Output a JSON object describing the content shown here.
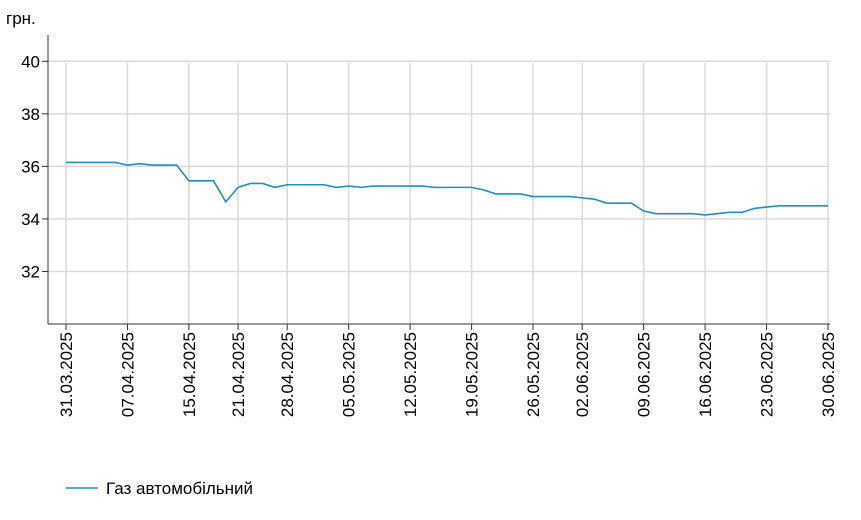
{
  "chart_data": {
    "type": "line",
    "y_label": "грн.",
    "categories": [
      "31.03.2025",
      null,
      null,
      null,
      null,
      "07.04.2025",
      null,
      null,
      null,
      null,
      "15.04.2025",
      null,
      null,
      null,
      "21.04.2025",
      null,
      null,
      null,
      "28.04.2025",
      null,
      null,
      null,
      null,
      "05.05.2025",
      null,
      null,
      null,
      null,
      "12.05.2025",
      null,
      null,
      null,
      null,
      "19.05.2025",
      null,
      null,
      null,
      null,
      "26.05.2025",
      null,
      null,
      null,
      "02.06.2025",
      null,
      null,
      null,
      null,
      "09.06.2025",
      null,
      null,
      null,
      null,
      "16.06.2025",
      null,
      null,
      null,
      null,
      "23.06.2025",
      null,
      null,
      null,
      null,
      "30.06.2025"
    ],
    "series": [
      {
        "name": "Газ автомобільний",
        "color": "#1f8fc4",
        "values": [
          36.15,
          36.15,
          36.15,
          36.15,
          36.15,
          36.05,
          36.1,
          36.05,
          36.05,
          36.05,
          35.45,
          35.45,
          35.45,
          34.65,
          35.2,
          35.35,
          35.35,
          35.2,
          35.3,
          35.3,
          35.3,
          35.3,
          35.2,
          35.25,
          35.2,
          35.25,
          35.25,
          35.25,
          35.25,
          35.25,
          35.2,
          35.2,
          35.2,
          35.2,
          35.1,
          34.95,
          34.95,
          34.95,
          34.85,
          34.85,
          34.85,
          34.85,
          34.8,
          34.75,
          34.6,
          34.6,
          34.6,
          34.3,
          34.2,
          34.2,
          34.2,
          34.2,
          34.15,
          34.2,
          34.25,
          34.25,
          34.4,
          34.45,
          34.5,
          34.5,
          34.5,
          34.5,
          34.5
        ]
      }
    ],
    "ylim": [
      30,
      41
    ],
    "yticks": [
      32,
      34,
      36,
      38,
      40
    ],
    "grid": true
  }
}
